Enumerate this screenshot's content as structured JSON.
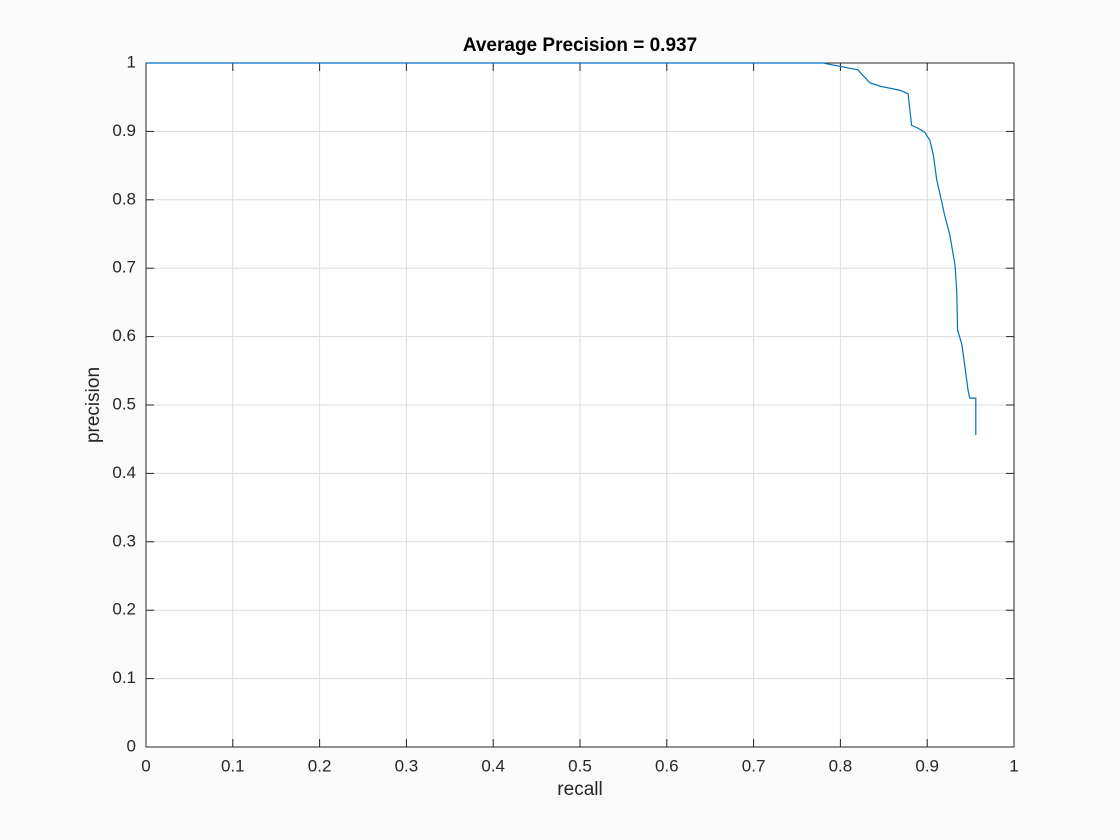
{
  "chart_data": {
    "type": "line",
    "title": "Average Precision = 0.937",
    "x_label": "recall",
    "y_label": "precision",
    "x": [
      0,
      0.78,
      0.8,
      0.82,
      0.834,
      0.846,
      0.869,
      0.878,
      0.882,
      0.889,
      0.897,
      0.903,
      0.907,
      0.911,
      0.915,
      0.92,
      0.926,
      0.932,
      0.934,
      0.935,
      0.94,
      0.944,
      0.947,
      0.949,
      0.956,
      0.956
    ],
    "series": [
      {
        "name": "precision",
        "color": "#0072bd",
        "values": [
          1,
          1,
          0.995,
          0.99,
          0.971,
          0.966,
          0.96,
          0.955,
          0.909,
          0.905,
          0.899,
          0.887,
          0.866,
          0.829,
          0.807,
          0.778,
          0.749,
          0.705,
          0.668,
          0.61,
          0.588,
          0.551,
          0.522,
          0.51,
          0.51,
          0.456
        ]
      }
    ],
    "xlim": [
      0,
      1
    ],
    "ylim": [
      0,
      1
    ],
    "xticks": [
      0,
      0.1,
      0.2,
      0.3,
      0.4,
      0.5,
      0.6,
      0.7,
      0.8,
      0.9,
      1
    ],
    "yticks": [
      0,
      0.1,
      0.2,
      0.3,
      0.4,
      0.5,
      0.6,
      0.7,
      0.8,
      0.9,
      1
    ],
    "grid": true
  }
}
